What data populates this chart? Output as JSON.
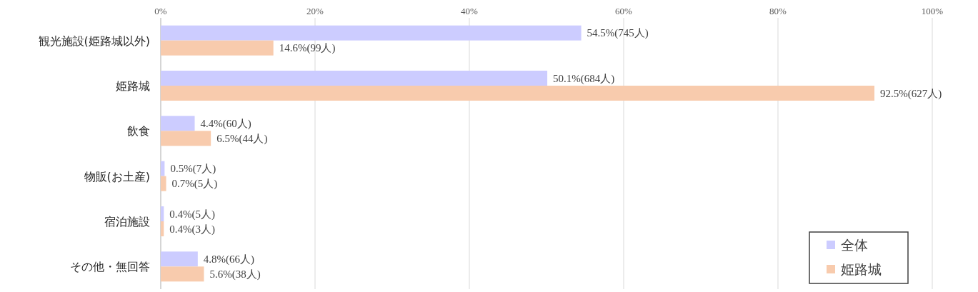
{
  "chart_data": {
    "type": "bar",
    "orientation": "horizontal",
    "categories": [
      "観光施設(姫路城以外)",
      "姫路城",
      "飲食",
      "物販(お土産)",
      "宿泊施設",
      "その他・無回答"
    ],
    "series": [
      {
        "name": "全体",
        "color": "#ccccff",
        "values": [
          54.5,
          50.1,
          4.4,
          0.5,
          0.4,
          4.8
        ],
        "value_labels": [
          "54.5%(745人)",
          "50.1%(684人)",
          "4.4%(60人)",
          "0.5%(7人)",
          "0.4%(5人)",
          "4.8%(66人)"
        ]
      },
      {
        "name": "姫路城",
        "color": "#f8cbad",
        "values": [
          14.6,
          92.5,
          6.5,
          0.7,
          0.4,
          5.6
        ],
        "value_labels": [
          "14.6%(99人)",
          "92.5%(627人)",
          "6.5%(44人)",
          "0.7%(5人)",
          "0.4%(3人)",
          "5.6%(38人)"
        ]
      }
    ],
    "xlim": [
      0,
      100
    ],
    "xticks": [
      {
        "value": 0,
        "label": "0%"
      },
      {
        "value": 20,
        "label": "20%"
      },
      {
        "value": 40,
        "label": "40%"
      },
      {
        "value": 60,
        "label": "60%"
      },
      {
        "value": 80,
        "label": "80%"
      },
      {
        "value": 100,
        "label": "100%"
      }
    ],
    "grid": "x",
    "legend": "bottom right"
  }
}
